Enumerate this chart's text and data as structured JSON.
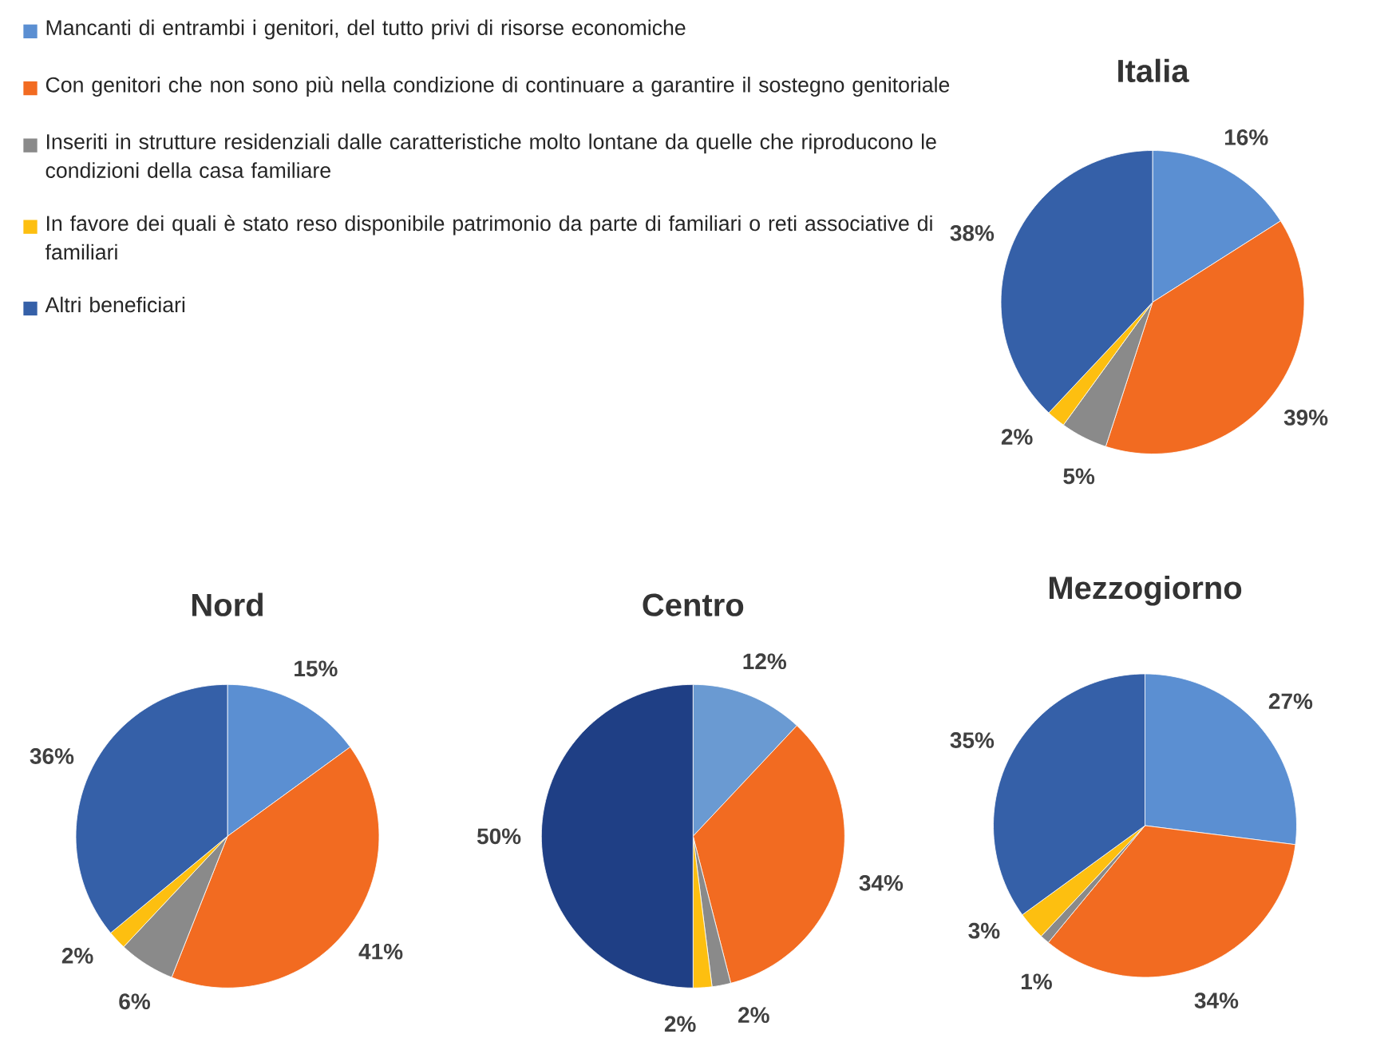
{
  "chart_data": [
    {
      "type": "pie",
      "title": "Italia",
      "legend": "top left",
      "categories": [
        "Mancanti di entrambi i genitori, del tutto privi di risorse economiche",
        "Con genitori che non sono più nella condizione di continuare a garantire  il sostegno genitoriale",
        "Inseriti in strutture residenziali dalle caratteristiche molto lontane da quelle che riproducono le condizioni della casa familiare",
        "In favore dei quali è stato reso disponibile patrimonio da parte di familiari o reti associative di familiari",
        "Altri beneficiari"
      ],
      "values": [
        16,
        39,
        5,
        2,
        38
      ],
      "value_labels": [
        "16%",
        "39%",
        "5%",
        "2%",
        "38%"
      ],
      "colors": [
        "#5b8fd2",
        "#f26b21",
        "#8a8a8a",
        "#fdbf10",
        "#3560a8"
      ]
    },
    {
      "type": "pie",
      "title": "Nord",
      "categories": [
        null,
        null,
        null,
        null,
        null
      ],
      "values": [
        15,
        41,
        6,
        2,
        36
      ],
      "value_labels": [
        "15%",
        "41%",
        "6%",
        "2%",
        "36%"
      ],
      "colors": [
        "#5b8fd2",
        "#f26b21",
        "#8a8a8a",
        "#fdbf10",
        "#3560a8"
      ]
    },
    {
      "type": "pie",
      "title": "Centro",
      "categories": [
        null,
        null,
        null,
        null,
        null
      ],
      "values": [
        12,
        34,
        2,
        2,
        50
      ],
      "value_labels": [
        "12%",
        "34%",
        "2%",
        "2%",
        "50%"
      ],
      "colors": [
        "#6a9ad2",
        "#f26b21",
        "#8a8a8a",
        "#fdbf10",
        "#1f3f85"
      ]
    },
    {
      "type": "pie",
      "title": "Mezzogiorno",
      "categories": [
        null,
        null,
        null,
        null,
        null
      ],
      "values": [
        27,
        34,
        1,
        3,
        35
      ],
      "value_labels": [
        "27%",
        "34%",
        "1%",
        "3%",
        "35%"
      ],
      "colors": [
        "#5b8fd2",
        "#f26b21",
        "#8a8a8a",
        "#fdbf10",
        "#3560a8"
      ]
    }
  ]
}
